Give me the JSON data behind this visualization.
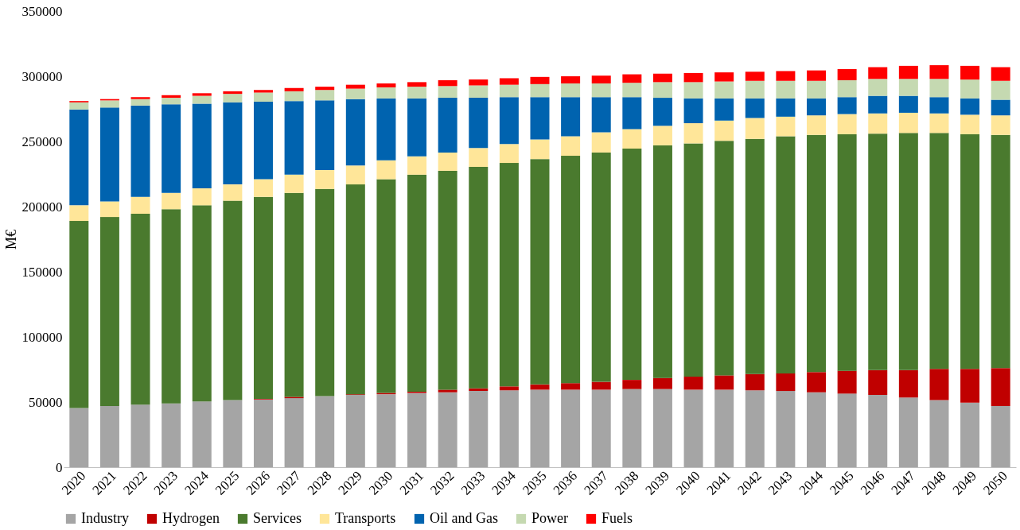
{
  "chart_data": {
    "type": "bar",
    "stacked": true,
    "ylabel": "M€",
    "categories": [
      "2020",
      "2021",
      "2022",
      "2023",
      "2024",
      "2025",
      "2026",
      "2027",
      "2028",
      "2029",
      "2030",
      "2031",
      "2032",
      "2033",
      "2034",
      "2035",
      "2036",
      "2037",
      "2038",
      "2039",
      "2040",
      "2041",
      "2042",
      "2043",
      "2044",
      "2045",
      "2046",
      "2047",
      "2048",
      "2049",
      "2050"
    ],
    "ylim": [
      0,
      350000
    ],
    "yticks": [
      0,
      50000,
      100000,
      150000,
      200000,
      250000,
      300000,
      350000
    ],
    "grid": false,
    "legend": "bottom",
    "series": [
      {
        "name": "Industry",
        "color": "#a5a5a5",
        "values": [
          45500,
          47000,
          48000,
          49000,
          50500,
          51500,
          52000,
          53000,
          54500,
          55500,
          56000,
          57000,
          57500,
          58500,
          59000,
          59500,
          59500,
          59500,
          60000,
          60000,
          59500,
          59500,
          59000,
          58500,
          57500,
          56500,
          55500,
          53500,
          51500,
          49500,
          47000
        ]
      },
      {
        "name": "Hydrogen",
        "color": "#c00000",
        "values": [
          0,
          0,
          0,
          0,
          0,
          0,
          500,
          1000,
          0,
          500,
          1000,
          1000,
          2000,
          2000,
          3000,
          4000,
          5000,
          6000,
          7000,
          8500,
          10000,
          11000,
          12500,
          13500,
          15500,
          17500,
          19000,
          21000,
          24000,
          26000,
          29000
        ]
      },
      {
        "name": "Services",
        "color": "#4a7a2e",
        "values": [
          143500,
          145000,
          146500,
          149000,
          150500,
          153000,
          155000,
          156500,
          159000,
          161000,
          164000,
          166500,
          168000,
          170000,
          171500,
          173000,
          174500,
          176000,
          177500,
          178500,
          179000,
          180000,
          180500,
          182000,
          182000,
          181500,
          181500,
          182000,
          181000,
          180000,
          179000
        ]
      },
      {
        "name": "Transports",
        "color": "#ffe699",
        "values": [
          12000,
          12000,
          13000,
          12500,
          13000,
          12500,
          13500,
          14000,
          14500,
          14500,
          14500,
          14000,
          14000,
          14500,
          14500,
          15000,
          15000,
          15500,
          15000,
          15000,
          15500,
          15500,
          16000,
          15000,
          15000,
          15500,
          15500,
          15500,
          15000,
          15000,
          15000
        ]
      },
      {
        "name": "Oil and Gas",
        "color": "#0063af",
        "values": [
          73500,
          72000,
          70000,
          68000,
          65000,
          63000,
          59500,
          56500,
          53500,
          51000,
          47500,
          44500,
          42000,
          38500,
          36000,
          32500,
          30000,
          27000,
          24500,
          21500,
          19000,
          17000,
          15000,
          14000,
          13000,
          13000,
          13500,
          13000,
          12500,
          12500,
          12000
        ]
      },
      {
        "name": "Power",
        "color": "#c5d9b1",
        "values": [
          5500,
          5500,
          5000,
          5000,
          6000,
          6500,
          7000,
          7500,
          8000,
          8000,
          8500,
          9000,
          9000,
          9500,
          9500,
          10000,
          10500,
          10500,
          11000,
          12000,
          12500,
          13000,
          13500,
          13500,
          13500,
          13000,
          13000,
          13000,
          14000,
          14500,
          14500
        ]
      },
      {
        "name": "Fuels",
        "color": "#ff0000",
        "values": [
          1000,
          1000,
          1500,
          2000,
          2000,
          2000,
          2000,
          2500,
          2500,
          3000,
          3000,
          3500,
          4500,
          4500,
          5000,
          5500,
          5500,
          6000,
          6500,
          6500,
          7000,
          7000,
          7000,
          7500,
          8000,
          8500,
          9000,
          10000,
          10500,
          10500,
          10500
        ]
      }
    ]
  }
}
